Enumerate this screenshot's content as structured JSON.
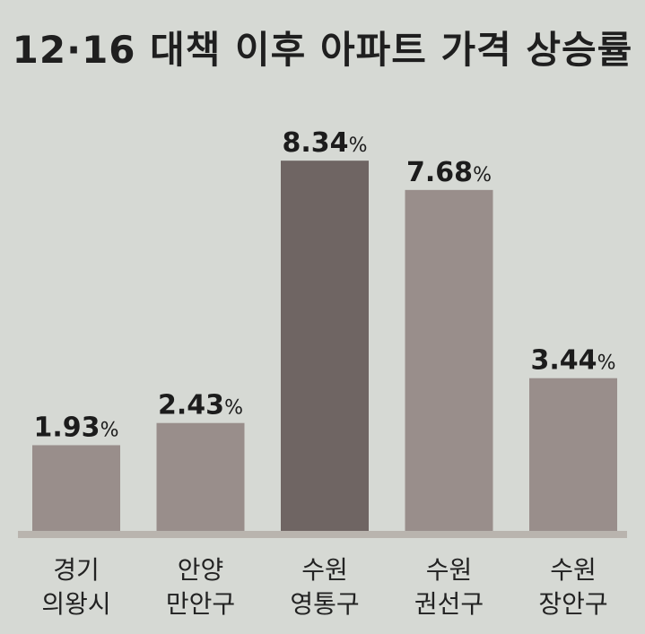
{
  "chart_data": {
    "type": "bar",
    "title": "12·16 대책 이후 아파트 가격 상승률",
    "categories": [
      [
        "경기",
        "의왕시"
      ],
      [
        "안양",
        "만안구"
      ],
      [
        "수원",
        "영통구"
      ],
      [
        "수원",
        "권선구"
      ],
      [
        "수원",
        "장안구"
      ]
    ],
    "values": [
      1.93,
      2.43,
      8.34,
      7.68,
      3.44
    ],
    "value_labels": [
      "1.93",
      "2.43",
      "8.34",
      "7.68",
      "3.44"
    ],
    "value_suffix": "%",
    "colors": [
      "#998e8b",
      "#998e8b",
      "#6f6563",
      "#998e8b",
      "#998e8b"
    ],
    "baseline_color": "#b9b4ae",
    "xlabel": "",
    "ylabel": "",
    "ylim": [
      0,
      9
    ],
    "grid": false
  }
}
